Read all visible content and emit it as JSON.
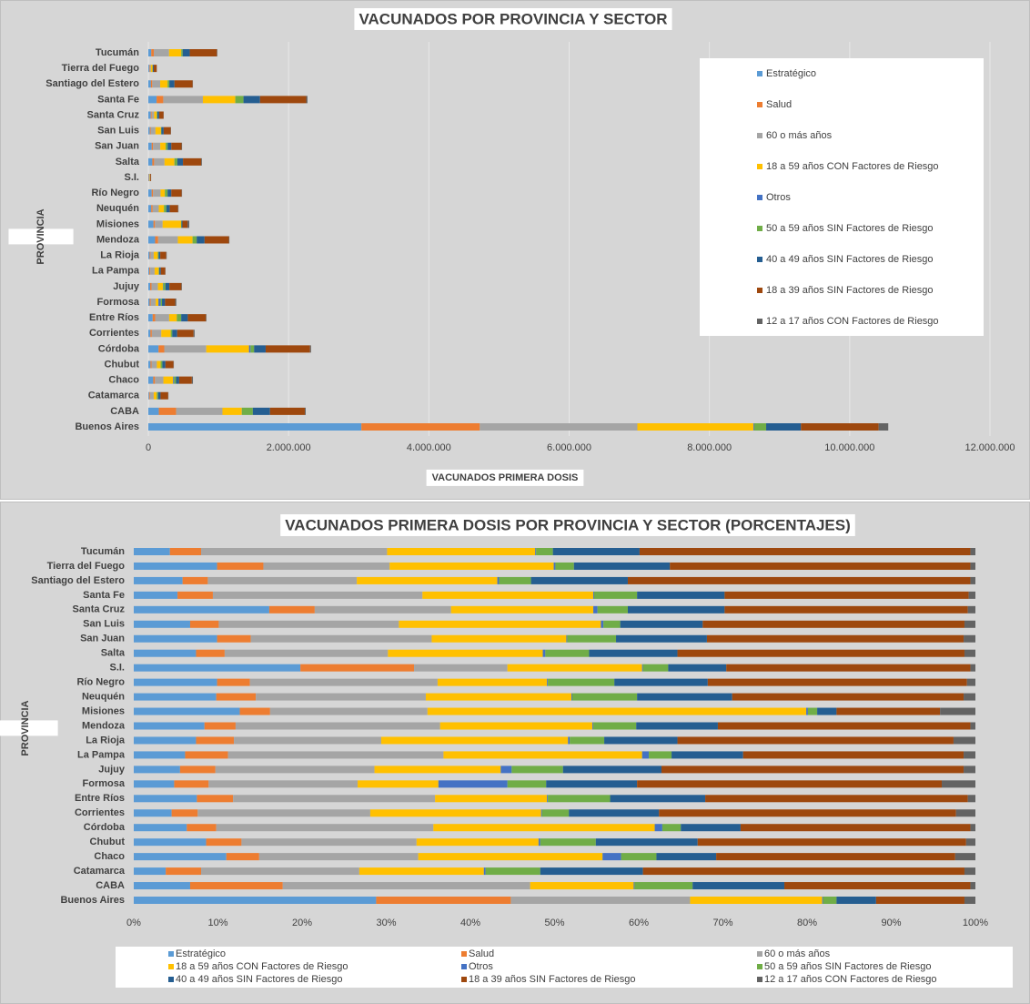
{
  "chart_data": [
    {
      "type": "bar",
      "orientation": "horizontal",
      "stacked": true,
      "grid": true,
      "legend": "right",
      "title": "VACUNADOS POR PROVINCIA Y SECTOR",
      "xlabel": "VACUNADOS PRIMERA DOSIS",
      "ylabel": "PROVINCIA",
      "categories": [
        "Buenos Aires",
        "CABA",
        "Catamarca",
        "Chaco",
        "Chubut",
        "Córdoba",
        "Corrientes",
        "Entre Ríos",
        "Formosa",
        "Jujuy",
        "La Pampa",
        "La Rioja",
        "Mendoza",
        "Misiones",
        "Neuquén",
        "Río Negro",
        "S.I.",
        "Salta",
        "San Juan",
        "San Luis",
        "Santa Cruz",
        "Santa Fe",
        "Santiago del Estero",
        "Tierra del Fuego",
        "Tucumán"
      ],
      "xlim": [
        0,
        12000000
      ],
      "xticks": [
        0,
        {
          "value": 2000000,
          "label": "2.000.000"
        },
        {
          "value": 4000000,
          "label": "4.000.000"
        },
        {
          "value": 6000000,
          "label": "6.000.000"
        },
        {
          "value": 8000000,
          "label": "8.000.000"
        },
        {
          "value": 10000000,
          "label": "10.000.000"
        },
        {
          "value": 12000000,
          "label": "12.000.000"
        }
      ],
      "series": [
        {
          "name": "Estratégico",
          "color": "#5b9bd5",
          "values": [
            3038000,
            150000,
            11000,
            70000,
            31000,
            146000,
            30000,
            62000,
            19000,
            26000,
            15000,
            19000,
            97000,
            74000,
            42000,
            48000,
            7900,
            57000,
            48000,
            22000,
            35000,
            118000,
            37000,
            12000,
            42000
          ]
        },
        {
          "name": "Salud",
          "color": "#ed7d31",
          "values": [
            1688000,
            247000,
            12000,
            25000,
            15000,
            81000,
            20000,
            36000,
            16000,
            20000,
            12000,
            12000,
            43000,
            21000,
            20000,
            19000,
            5400,
            26000,
            19000,
            11000,
            12000,
            95000,
            19000,
            7000,
            36000
          ]
        },
        {
          "name": "60 o más años",
          "color": "#a5a5a5",
          "values": [
            2247000,
            660000,
            54000,
            120000,
            76000,
            599000,
            135000,
            199000,
            71000,
            91000,
            63000,
            46000,
            281000,
            109000,
            87000,
            107000,
            4400,
            148000,
            103000,
            69000,
            36000,
            565000,
            113000,
            18000,
            218000
          ]
        },
        {
          "name": "18 a 59 años CON Factores de Riesgo",
          "color": "#ffc000",
          "values": [
            1656000,
            276000,
            42000,
            139000,
            53000,
            610000,
            134000,
            110000,
            38000,
            72000,
            58000,
            58000,
            209000,
            263000,
            74000,
            62000,
            6400,
            141000,
            77000,
            78000,
            37000,
            461000,
            106000,
            23000,
            173000
          ]
        },
        {
          "name": "Otros",
          "color": "#4472c4",
          "values": [
            11000,
            2000,
            1000,
            14000,
            1000,
            21000,
            1000,
            1000,
            33000,
            6000,
            2000,
            1000,
            1000,
            1000,
            1000,
            1000,
            40,
            2000,
            1000,
            1000,
            1000,
            2000,
            1000,
            200,
            1000
          ]
        },
        {
          "name": "50 a 59 años SIN Factores de Riesgo",
          "color": "#70ad47",
          "values": [
            169000,
            155000,
            19000,
            27000,
            24000,
            51000,
            21000,
            61000,
            18000,
            29000,
            7000,
            11000,
            59000,
            6000,
            33000,
            38000,
            1200,
            40000,
            28000,
            6000,
            8000,
            116000,
            24000,
            3000,
            20000
          ]
        },
        {
          "name": "40 a 49 años SIN Factores de Riesgo",
          "color": "#255e91",
          "values": [
            496000,
            245000,
            35000,
            45000,
            44000,
            165000,
            71000,
            94000,
            43000,
            56000,
            21000,
            23000,
            112000,
            13000,
            49000,
            53000,
            2800,
            80000,
            52000,
            32000,
            25000,
            236000,
            73000,
            14000,
            101000
          ]
        },
        {
          "name": "18 a 39 años SIN Factores de Riesgo",
          "color": "#9e480e",
          "values": [
            1108000,
            496000,
            109000,
            181000,
            116000,
            633000,
            233000,
            259000,
            145000,
            172000,
            64000,
            85000,
            347000,
            72000,
            118000,
            148000,
            11600,
            261000,
            146000,
            101000,
            64000,
            658000,
            259000,
            43000,
            387000
          ]
        },
        {
          "name": "12 a 17 años CON Factores de Riesgo",
          "color": "#636363",
          "values": [
            137000,
            13000,
            4000,
            15000,
            4000,
            14000,
            15000,
            7000,
            16000,
            7000,
            3000,
            7000,
            7000,
            25000,
            6000,
            5000,
            240,
            10000,
            7000,
            4000,
            2000,
            18000,
            4000,
            1000,
            6000
          ]
        }
      ]
    },
    {
      "type": "bar",
      "orientation": "horizontal",
      "stacked": true,
      "grid": false,
      "legend": "bottom",
      "title": "VACUNADOS PRIMERA DOSIS POR PROVINCIA Y SECTOR (PORCENTAJES)",
      "ylabel": "PROVINCIA",
      "categories": [
        "Buenos Aires",
        "CABA",
        "Catamarca",
        "Chaco",
        "Chubut",
        "Córdoba",
        "Corrientes",
        "Entre Ríos",
        "Formosa",
        "Jujuy",
        "La Pampa",
        "La Rioja",
        "Mendoza",
        "Misiones",
        "Neuquén",
        "Río Negro",
        "S.I.",
        "Salta",
        "San Juan",
        "San Luis",
        "Santa Cruz",
        "Santa Fe",
        "Santiago del Estero",
        "Tierra del Fuego",
        "Tucumán"
      ],
      "xlim": [
        0,
        100
      ],
      "xticks": [
        {
          "value": 0,
          "label": "0%"
        },
        {
          "value": 10,
          "label": "10%"
        },
        {
          "value": 20,
          "label": "20%"
        },
        {
          "value": 30,
          "label": "30%"
        },
        {
          "value": 40,
          "label": "40%"
        },
        {
          "value": 50,
          "label": "50%"
        },
        {
          "value": 60,
          "label": "60%"
        },
        {
          "value": 70,
          "label": "70%"
        },
        {
          "value": 80,
          "label": "80%"
        },
        {
          "value": 90,
          "label": "90%"
        },
        {
          "value": 100,
          "label": "100%"
        }
      ],
      "series": [
        {
          "name": "Estratégico",
          "color": "#5b9bd5",
          "values": [
            28.8,
            6.7,
            3.8,
            11.0,
            8.6,
            6.3,
            4.5,
            7.5,
            4.8,
            5.5,
            6.1,
            7.4,
            8.4,
            12.6,
            9.8,
            9.9,
            19.8,
            7.4,
            9.9,
            6.7,
            16.1,
            5.2,
            5.8,
            9.9,
            4.3
          ]
        },
        {
          "name": "Salud",
          "color": "#ed7d31",
          "values": [
            16.0,
            11.0,
            4.2,
            3.9,
            4.2,
            3.5,
            3.1,
            4.3,
            4.1,
            4.2,
            5.1,
            4.5,
            3.7,
            3.6,
            4.7,
            3.9,
            13.5,
            3.4,
            4.0,
            3.4,
            5.4,
            4.2,
            3.0,
            5.5,
            3.7
          ]
        },
        {
          "name": "60 o más años",
          "color": "#a5a5a5",
          "values": [
            21.3,
            29.4,
            18.8,
            18.9,
            20.8,
            25.8,
            20.5,
            24.0,
            17.7,
            18.9,
            25.6,
            17.5,
            24.3,
            18.7,
            20.2,
            22.3,
            11.1,
            19.4,
            21.5,
            21.4,
            16.2,
            24.9,
            17.7,
            15.0,
            22.1
          ]
        },
        {
          "name": "18 a 59 años CON Factores de Riesgo",
          "color": "#ffc000",
          "values": [
            15.7,
            12.3,
            14.8,
            21.9,
            14.5,
            26.3,
            20.3,
            13.3,
            9.6,
            15.0,
            23.6,
            22.2,
            18.1,
            45.0,
            17.3,
            13.0,
            16.0,
            18.4,
            16.0,
            24.0,
            16.9,
            20.3,
            16.7,
            19.5,
            17.6
          ]
        },
        {
          "name": "Otros",
          "color": "#4472c4",
          "values": [
            0.1,
            0.1,
            0.2,
            2.2,
            0.2,
            0.9,
            0.1,
            0.1,
            8.2,
            1.3,
            0.8,
            0.2,
            0.1,
            0.2,
            0.1,
            0.1,
            0.1,
            0.3,
            0.1,
            0.3,
            0.5,
            0.1,
            0.2,
            0.2,
            0.1
          ]
        },
        {
          "name": "50 a 59 años SIN Factores de Riesgo",
          "color": "#70ad47",
          "values": [
            1.6,
            6.9,
            6.5,
            4.2,
            6.6,
            2.2,
            3.2,
            7.4,
            4.6,
            6.1,
            2.7,
            4.1,
            5.1,
            1.1,
            7.7,
            7.9,
            3.0,
            5.2,
            5.8,
            2.0,
            3.6,
            5.1,
            3.8,
            2.2,
            2.0
          ]
        },
        {
          "name": "40 a 49 años SIN Factores de Riesgo",
          "color": "#255e91",
          "values": [
            4.7,
            10.9,
            12.2,
            7.1,
            12.1,
            7.1,
            10.7,
            11.3,
            10.8,
            11.7,
            8.5,
            8.7,
            9.7,
            2.3,
            11.3,
            11.1,
            6.9,
            10.5,
            10.8,
            9.8,
            11.5,
            10.4,
            11.5,
            11.4,
            10.3
          ]
        },
        {
          "name": "18 a 39 años SIN Factores de Riesgo",
          "color": "#9e480e",
          "values": [
            10.5,
            22.1,
            38.2,
            28.4,
            31.9,
            27.3,
            35.3,
            31.2,
            36.2,
            35.9,
            26.2,
            32.8,
            30.0,
            12.3,
            27.5,
            30.8,
            29.0,
            34.1,
            30.5,
            31.1,
            28.9,
            29.0,
            40.7,
            35.7,
            39.3
          ]
        },
        {
          "name": "12 a 17 años CON Factores de Riesgo",
          "color": "#636363",
          "values": [
            1.3,
            0.6,
            1.3,
            2.4,
            1.1,
            0.6,
            2.3,
            0.9,
            4.0,
            1.4,
            1.4,
            2.6,
            0.6,
            4.2,
            1.4,
            1.0,
            0.6,
            1.3,
            1.4,
            1.3,
            0.9,
            0.8,
            0.6,
            0.6,
            0.6
          ]
        }
      ]
    }
  ]
}
